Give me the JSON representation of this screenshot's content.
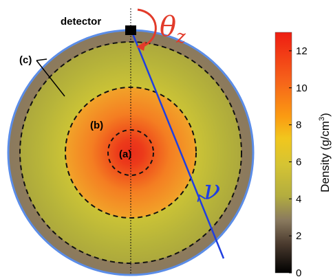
{
  "labels": {
    "detector": "detector",
    "region_a": "(a)",
    "region_b": "(b)",
    "region_c": "(c)",
    "theta": "θ",
    "theta_sub": "z",
    "nu": "ν"
  },
  "colorbar": {
    "label": "Density (g/cm",
    "label_sup": "3",
    "label_close": ")",
    "ticks": [
      0,
      2,
      4,
      6,
      8,
      10,
      12
    ],
    "range": [
      0,
      13
    ]
  },
  "colors": {
    "neutrino_path": "#1f3fe0",
    "theta_arrow": "#e23b2a",
    "earth_outline": "#5b8de8"
  }
}
